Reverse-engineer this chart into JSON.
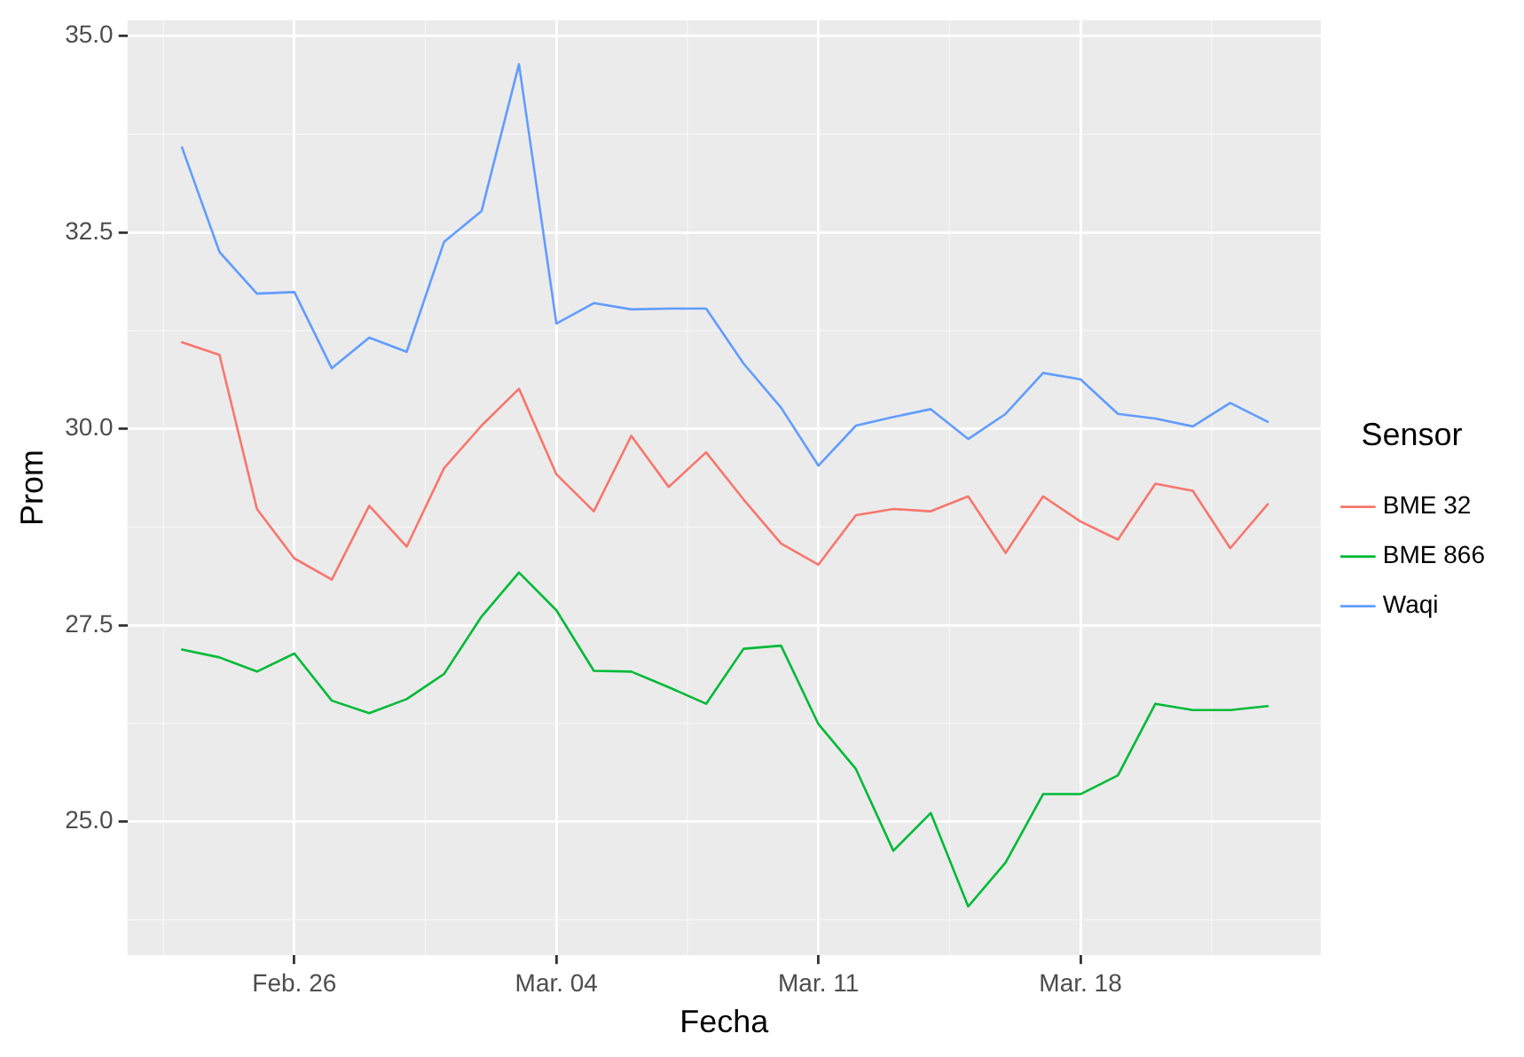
{
  "chart_data": {
    "type": "line",
    "xlabel": "Fecha",
    "ylabel": "Prom",
    "legend_title": "Sensor",
    "legend": "right",
    "grid": true,
    "x": [
      "--02-23",
      "--02-24",
      "--02-25",
      "--02-26",
      "--02-27",
      "--02-28",
      "--02-29",
      "--03-01",
      "--03-02",
      "--03-03",
      "--03-04",
      "--03-05",
      "--03-06",
      "--03-07",
      "--03-08",
      "--03-09",
      "--03-10",
      "--03-11",
      "--03-12",
      "--03-13",
      "--03-14",
      "--03-15",
      "--03-16",
      "--03-17",
      "--03-18",
      "--03-19",
      "--03-20",
      "--03-21",
      "--03-22",
      "--03-23"
    ],
    "xlim": [
      "--02-21T13:00",
      "--03-24T10:00"
    ],
    "xticks": [
      {
        "value": "--02-26",
        "label": "Feb. 26"
      },
      {
        "value": "--03-04",
        "label": "Mar. 04"
      },
      {
        "value": "--03-11",
        "label": "Mar. 11"
      },
      {
        "value": "--03-18",
        "label": "Mar. 18"
      }
    ],
    "ylim": [
      23.3,
      35.2
    ],
    "yticks": [
      {
        "value": 25,
        "label": "25.0"
      },
      {
        "value": 27.5,
        "label": "27.5"
      },
      {
        "value": 30,
        "label": "30.0"
      },
      {
        "value": 32.5,
        "label": "32.5"
      },
      {
        "value": 35,
        "label": "35.0"
      }
    ],
    "series": [
      {
        "name": "BME 32",
        "color": "#f8766d",
        "values": [
          31.1,
          30.94,
          28.98,
          28.35,
          28.08,
          29.02,
          28.5,
          29.5,
          30.04,
          30.51,
          29.42,
          28.95,
          29.91,
          29.26,
          29.7,
          29.1,
          28.54,
          28.27,
          28.9,
          28.98,
          28.95,
          29.14,
          28.42,
          29.14,
          28.82,
          28.59,
          29.3,
          29.21,
          28.48,
          29.04
        ]
      },
      {
        "name": "BME 866",
        "color": "#00ba38",
        "values": [
          27.19,
          27.09,
          26.91,
          27.14,
          26.54,
          26.38,
          26.56,
          26.88,
          27.61,
          28.17,
          27.69,
          26.92,
          26.91,
          26.71,
          26.5,
          27.2,
          27.24,
          26.24,
          25.67,
          24.63,
          25.11,
          23.92,
          24.48,
          25.35,
          25.35,
          25.59,
          26.5,
          26.42,
          26.42,
          26.47
        ]
      },
      {
        "name": "Waqi",
        "color": "#619cff",
        "values": [
          33.58,
          32.25,
          31.72,
          31.74,
          30.77,
          31.16,
          30.98,
          32.38,
          32.77,
          34.64,
          31.34,
          31.6,
          31.52,
          31.53,
          31.53,
          30.83,
          30.27,
          29.53,
          30.04,
          30.15,
          30.25,
          29.87,
          30.19,
          30.71,
          30.63,
          30.19,
          30.13,
          30.03,
          30.33,
          30.09
        ]
      }
    ]
  }
}
